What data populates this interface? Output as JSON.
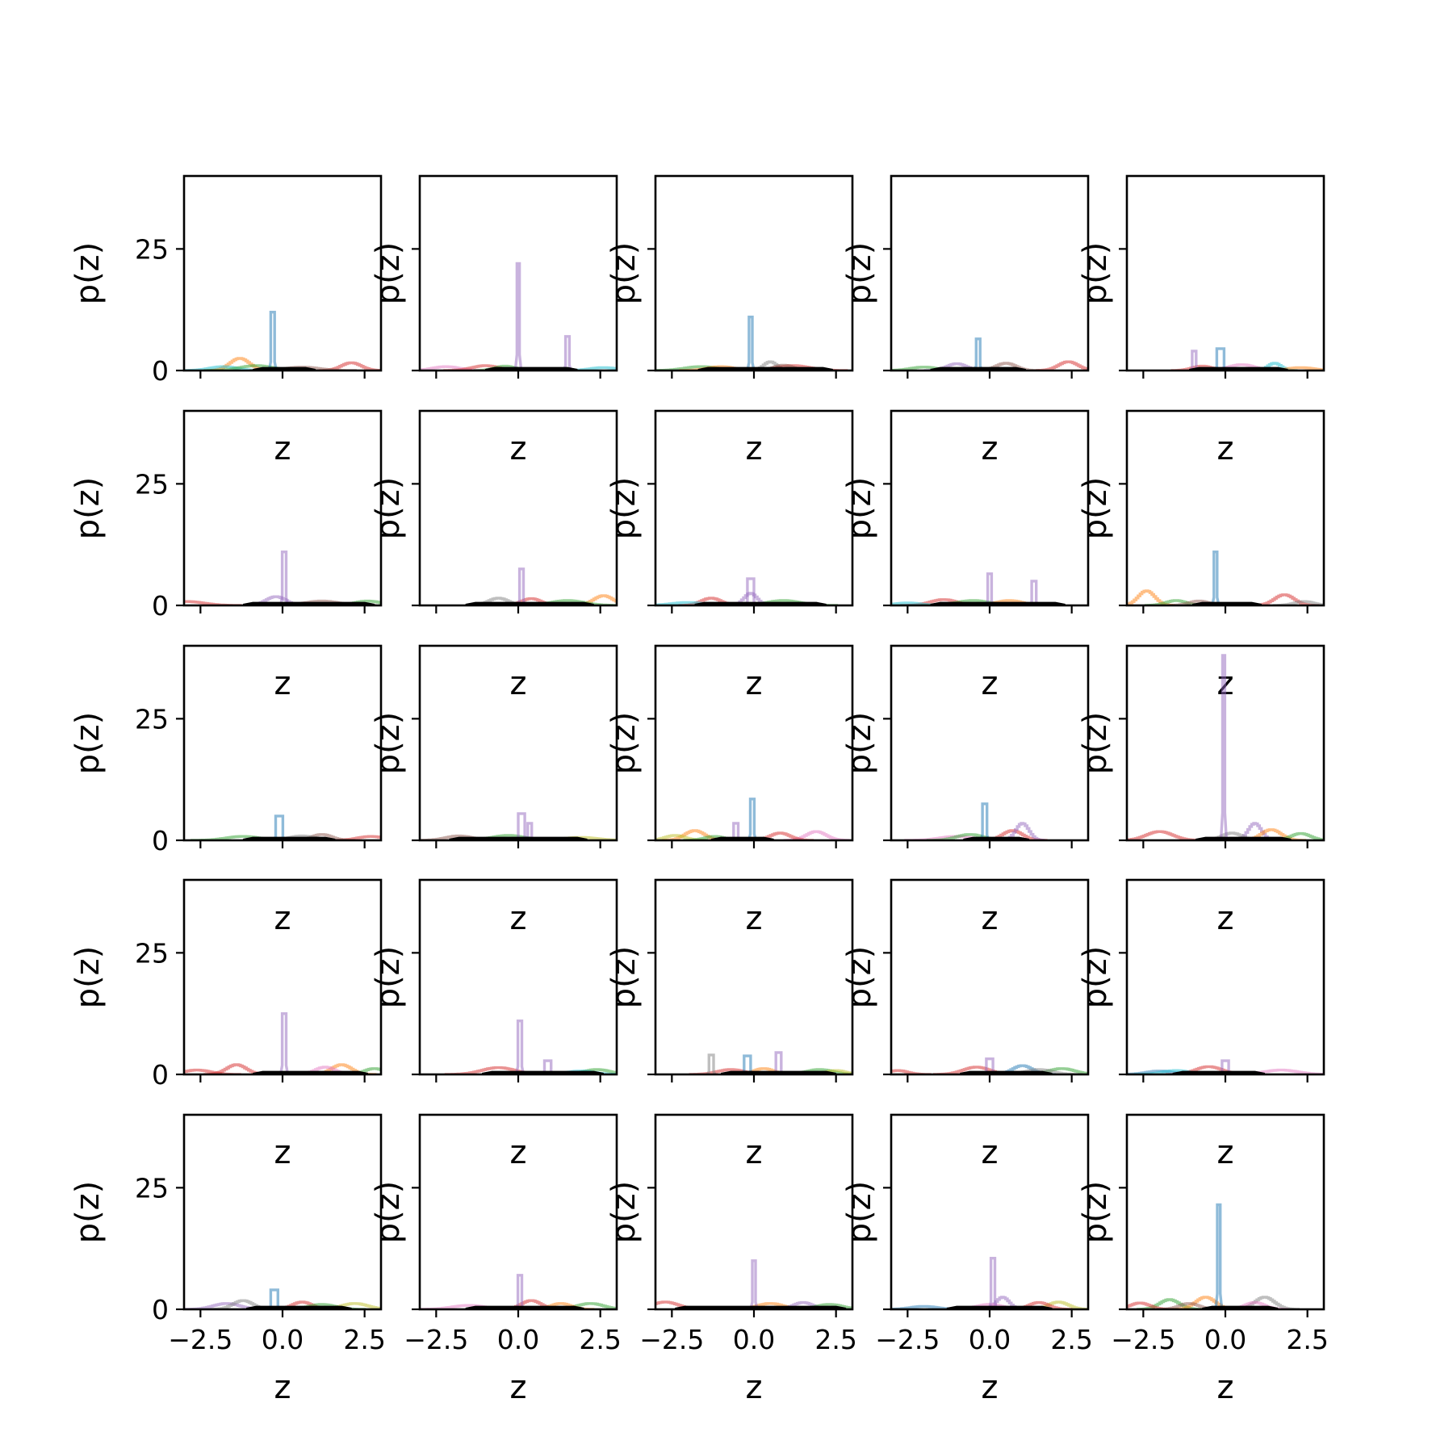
{
  "colors": [
    "#1f77b4",
    "#ff7f0e",
    "#2ca02c",
    "#d62728",
    "#9467bd",
    "#8c564b",
    "#e377c2",
    "#7f7f7f",
    "#bcbd22",
    "#17becf"
  ],
  "chart_data": {
    "type": "histogram-grid",
    "rows": 5,
    "cols": 5,
    "xlim": [
      -3,
      3
    ],
    "ylim": [
      0,
      40
    ],
    "xticks": [
      -2.5,
      0.0,
      2.5
    ],
    "xtick_labels": [
      "−2.5",
      "0.0",
      "2.5"
    ],
    "yticks": [
      0,
      25
    ],
    "ytick_labels": [
      "0",
      "25"
    ],
    "xlabel": "z",
    "ylabel": "p(z)",
    "panels": [
      {
        "spikes": [
          {
            "c": 0,
            "x": -0.3,
            "h": 12,
            "w": 0.12
          }
        ],
        "bumps": [
          {
            "c": 1,
            "x": -1.3,
            "h": 2.5,
            "w": 0.3
          },
          {
            "c": 3,
            "x": 2.1,
            "h": 1.6,
            "w": 0.3
          },
          {
            "c": 9,
            "x": -1.8,
            "h": 0.8,
            "w": 0.4
          },
          {
            "c": 2,
            "x": -0.8,
            "h": 1.0,
            "w": 0.5
          },
          {
            "c": 5,
            "x": 0.6,
            "h": 0.7,
            "w": 0.5
          }
        ],
        "mean": [
          -0.9,
          1.0
        ]
      },
      {
        "spikes": [
          {
            "c": 4,
            "x": 0.0,
            "h": 22,
            "w": 0.08
          },
          {
            "c": 4,
            "x": 1.5,
            "h": 7,
            "w": 0.12
          }
        ],
        "bumps": [
          {
            "c": 6,
            "x": -2.2,
            "h": 0.8,
            "w": 0.4
          },
          {
            "c": 3,
            "x": -1.0,
            "h": 1.0,
            "w": 0.4
          },
          {
            "c": 2,
            "x": -0.4,
            "h": 0.9,
            "w": 0.3
          },
          {
            "c": 9,
            "x": 2.6,
            "h": 0.6,
            "w": 0.4
          }
        ],
        "mean": [
          -1.0,
          1.8
        ]
      },
      {
        "spikes": [
          {
            "c": 0,
            "x": -0.1,
            "h": 11,
            "w": 0.1
          }
        ],
        "bumps": [
          {
            "c": 2,
            "x": -1.6,
            "h": 0.8,
            "w": 0.5
          },
          {
            "c": 1,
            "x": -1.0,
            "h": 0.8,
            "w": 0.4
          },
          {
            "c": 7,
            "x": 0.5,
            "h": 1.8,
            "w": 0.2
          },
          {
            "c": 3,
            "x": 1.2,
            "h": 1.0,
            "w": 0.5
          },
          {
            "c": 5,
            "x": 0.9,
            "h": 1.1,
            "w": 0.3
          }
        ],
        "mean": [
          -1.7,
          2.4
        ]
      },
      {
        "spikes": [
          {
            "c": 0,
            "x": -0.35,
            "h": 6.5,
            "w": 0.12
          }
        ],
        "bumps": [
          {
            "c": 2,
            "x": -2.0,
            "h": 0.7,
            "w": 0.4
          },
          {
            "c": 4,
            "x": -1.0,
            "h": 1.4,
            "w": 0.3
          },
          {
            "c": 3,
            "x": 2.4,
            "h": 1.8,
            "w": 0.3
          },
          {
            "c": 5,
            "x": 0.5,
            "h": 1.5,
            "w": 0.3
          }
        ],
        "mean": [
          -1.8,
          1.1
        ]
      },
      {
        "spikes": [
          {
            "c": 0,
            "x": -0.15,
            "h": 4.5,
            "w": 0.22
          },
          {
            "c": 4,
            "x": -0.95,
            "h": 4,
            "w": 0.12
          }
        ],
        "bumps": [
          {
            "c": 3,
            "x": -0.7,
            "h": 0.9,
            "w": 0.3
          },
          {
            "c": 9,
            "x": 1.5,
            "h": 1.5,
            "w": 0.2
          },
          {
            "c": 6,
            "x": 0.5,
            "h": 1.2,
            "w": 0.4
          },
          {
            "c": 1,
            "x": 2.3,
            "h": 0.6,
            "w": 0.4
          }
        ],
        "mean": [
          -1.1,
          1.9
        ]
      },
      {
        "spikes": [
          {
            "c": 4,
            "x": 0.05,
            "h": 11,
            "w": 0.12
          }
        ],
        "bumps": [
          {
            "c": 3,
            "x": -2.9,
            "h": 0.8,
            "w": 0.5
          },
          {
            "c": 4,
            "x": -0.2,
            "h": 1.8,
            "w": 0.3
          },
          {
            "c": 2,
            "x": 2.6,
            "h": 0.9,
            "w": 0.4
          },
          {
            "c": 5,
            "x": 1.2,
            "h": 0.9,
            "w": 0.5
          }
        ],
        "mean": [
          -1.2,
          2.8
        ]
      },
      {
        "spikes": [
          {
            "c": 4,
            "x": 0.1,
            "h": 7.5,
            "w": 0.12
          }
        ],
        "bumps": [
          {
            "c": 3,
            "x": 0.4,
            "h": 1.4,
            "w": 0.3
          },
          {
            "c": 1,
            "x": 2.6,
            "h": 2.0,
            "w": 0.3
          },
          {
            "c": 7,
            "x": -0.6,
            "h": 1.5,
            "w": 0.3
          },
          {
            "c": 2,
            "x": 1.5,
            "h": 1.0,
            "w": 0.5
          }
        ],
        "mean": [
          -1.6,
          2.3
        ]
      },
      {
        "spikes": [
          {
            "c": 4,
            "x": -0.1,
            "h": 5.5,
            "w": 0.2
          }
        ],
        "bumps": [
          {
            "c": 3,
            "x": -1.3,
            "h": 1.5,
            "w": 0.3
          },
          {
            "c": 9,
            "x": -2.0,
            "h": 0.6,
            "w": 0.5
          },
          {
            "c": 2,
            "x": 0.9,
            "h": 1.0,
            "w": 0.5
          },
          {
            "c": 4,
            "x": -0.1,
            "h": 2.5,
            "w": 0.2
          }
        ],
        "mean": [
          -1.8,
          2.2
        ]
      },
      {
        "spikes": [
          {
            "c": 4,
            "x": 0.0,
            "h": 6.5,
            "w": 0.12
          },
          {
            "c": 4,
            "x": 1.35,
            "h": 5,
            "w": 0.14
          }
        ],
        "bumps": [
          {
            "c": 3,
            "x": -1.4,
            "h": 1.2,
            "w": 0.4
          },
          {
            "c": 2,
            "x": -0.5,
            "h": 1.0,
            "w": 0.5
          },
          {
            "c": 1,
            "x": 0.6,
            "h": 1.0,
            "w": 0.4
          },
          {
            "c": 9,
            "x": -2.5,
            "h": 0.5,
            "w": 0.4
          }
        ],
        "mean": [
          -1.8,
          2.3
        ]
      },
      {
        "spikes": [
          {
            "c": 0,
            "x": -0.3,
            "h": 11,
            "w": 0.1
          }
        ],
        "bumps": [
          {
            "c": 1,
            "x": -2.4,
            "h": 3.0,
            "w": 0.25
          },
          {
            "c": 3,
            "x": 1.8,
            "h": 2.2,
            "w": 0.3
          },
          {
            "c": 2,
            "x": -1.5,
            "h": 1.0,
            "w": 0.3
          },
          {
            "c": 5,
            "x": -0.8,
            "h": 0.9,
            "w": 0.3
          },
          {
            "c": 7,
            "x": 2.4,
            "h": 0.8,
            "w": 0.3
          }
        ],
        "mean": [
          -1.0,
          1.1
        ]
      },
      {
        "spikes": [
          {
            "c": 0,
            "x": -0.1,
            "h": 5,
            "w": 0.22
          }
        ],
        "bumps": [
          {
            "c": 2,
            "x": -1.2,
            "h": 0.8,
            "w": 0.5
          },
          {
            "c": 5,
            "x": 1.2,
            "h": 1.2,
            "w": 0.3
          },
          {
            "c": 3,
            "x": 2.7,
            "h": 0.8,
            "w": 0.4
          },
          {
            "c": 7,
            "x": 0.6,
            "h": 0.9,
            "w": 0.4
          }
        ],
        "mean": [
          -1.2,
          1.6
        ]
      },
      {
        "spikes": [
          {
            "c": 4,
            "x": 0.1,
            "h": 5.5,
            "w": 0.2
          },
          {
            "c": 4,
            "x": 0.35,
            "h": 3.5,
            "w": 0.12
          }
        ],
        "bumps": [
          {
            "c": 5,
            "x": -1.8,
            "h": 0.9,
            "w": 0.4
          },
          {
            "c": 8,
            "x": 1.9,
            "h": 0.6,
            "w": 0.5
          },
          {
            "c": 2,
            "x": -0.3,
            "h": 1.0,
            "w": 0.5
          }
        ],
        "mean": [
          -2.1,
          2.1
        ]
      },
      {
        "spikes": [
          {
            "c": 0,
            "x": -0.05,
            "h": 8.5,
            "w": 0.12
          },
          {
            "c": 4,
            "x": -0.55,
            "h": 3.5,
            "w": 0.14
          }
        ],
        "bumps": [
          {
            "c": 1,
            "x": -1.8,
            "h": 2.0,
            "w": 0.3
          },
          {
            "c": 8,
            "x": -2.4,
            "h": 1.0,
            "w": 0.3
          },
          {
            "c": 6,
            "x": 1.9,
            "h": 1.8,
            "w": 0.3
          },
          {
            "c": 3,
            "x": 0.8,
            "h": 1.5,
            "w": 0.3
          },
          {
            "c": 2,
            "x": -1.2,
            "h": 0.8,
            "w": 0.3
          }
        ],
        "mean": [
          -1.3,
          0.6
        ]
      },
      {
        "spikes": [
          {
            "c": 0,
            "x": -0.15,
            "h": 7.5,
            "w": 0.14
          }
        ],
        "bumps": [
          {
            "c": 3,
            "x": 0.7,
            "h": 2.0,
            "w": 0.3
          },
          {
            "c": 4,
            "x": 1.0,
            "h": 3.5,
            "w": 0.2
          },
          {
            "c": 6,
            "x": -1.0,
            "h": 0.8,
            "w": 0.5
          },
          {
            "c": 2,
            "x": -0.6,
            "h": 1.2,
            "w": 0.4
          }
        ],
        "mean": [
          -0.8,
          1.2
        ]
      },
      {
        "spikes": [
          {
            "c": 4,
            "x": -0.05,
            "h": 38,
            "w": 0.07
          }
        ],
        "bumps": [
          {
            "c": 3,
            "x": -2.0,
            "h": 1.8,
            "w": 0.4
          },
          {
            "c": 4,
            "x": 0.9,
            "h": 3.5,
            "w": 0.2
          },
          {
            "c": 1,
            "x": 1.4,
            "h": 2.2,
            "w": 0.3
          },
          {
            "c": 2,
            "x": 2.3,
            "h": 1.4,
            "w": 0.3
          },
          {
            "c": 7,
            "x": 0.2,
            "h": 1.5,
            "w": 0.3
          }
        ],
        "mean": [
          -0.9,
          2.0
        ]
      },
      {
        "spikes": [
          {
            "c": 4,
            "x": 0.05,
            "h": 12.5,
            "w": 0.12
          }
        ],
        "bumps": [
          {
            "c": 3,
            "x": -2.6,
            "h": 0.9,
            "w": 0.4
          },
          {
            "c": 3,
            "x": -1.4,
            "h": 2.0,
            "w": 0.3
          },
          {
            "c": 1,
            "x": 1.8,
            "h": 2.0,
            "w": 0.3
          },
          {
            "c": 2,
            "x": 2.8,
            "h": 1.2,
            "w": 0.3
          },
          {
            "c": 6,
            "x": 1.3,
            "h": 1.5,
            "w": 0.3
          }
        ],
        "mean": [
          -0.9,
          2.6
        ]
      },
      {
        "spikes": [
          {
            "c": 4,
            "x": 0.05,
            "h": 11,
            "w": 0.12
          },
          {
            "c": 4,
            "x": 0.9,
            "h": 2.8,
            "w": 0.2
          }
        ],
        "bumps": [
          {
            "c": 3,
            "x": -0.6,
            "h": 1.4,
            "w": 0.5
          },
          {
            "c": 2,
            "x": 2.4,
            "h": 1.0,
            "w": 0.4
          },
          {
            "c": 9,
            "x": 1.9,
            "h": 0.7,
            "w": 0.4
          }
        ],
        "mean": [
          -1.1,
          2.6
        ]
      },
      {
        "spikes": [
          {
            "c": 0,
            "x": -0.2,
            "h": 3.8,
            "w": 0.2
          },
          {
            "c": 7,
            "x": -1.3,
            "h": 4,
            "w": 0.14
          },
          {
            "c": 4,
            "x": 0.75,
            "h": 4.5,
            "w": 0.16
          }
        ],
        "bumps": [
          {
            "c": 3,
            "x": -0.7,
            "h": 1.0,
            "w": 0.4
          },
          {
            "c": 1,
            "x": 0.3,
            "h": 1.2,
            "w": 0.3
          },
          {
            "c": 2,
            "x": 2.0,
            "h": 1.0,
            "w": 0.4
          },
          {
            "c": 8,
            "x": 2.5,
            "h": 0.8,
            "w": 0.3
          }
        ],
        "mean": [
          -1.0,
          2.5
        ]
      },
      {
        "spikes": [
          {
            "c": 4,
            "x": 0.0,
            "h": 3.2,
            "w": 0.2
          }
        ],
        "bumps": [
          {
            "c": 3,
            "x": -0.4,
            "h": 1.5,
            "w": 0.4
          },
          {
            "c": 0,
            "x": 1.0,
            "h": 1.8,
            "w": 0.3
          },
          {
            "c": 2,
            "x": 2.2,
            "h": 1.2,
            "w": 0.4
          },
          {
            "c": 3,
            "x": -2.8,
            "h": 0.8,
            "w": 0.3
          },
          {
            "c": 7,
            "x": 1.5,
            "h": 1.0,
            "w": 0.4
          }
        ],
        "mean": [
          -0.9,
          1.9
        ]
      },
      {
        "spikes": [
          {
            "c": 4,
            "x": 0.0,
            "h": 2.8,
            "w": 0.2
          }
        ],
        "bumps": [
          {
            "c": 3,
            "x": -0.5,
            "h": 1.6,
            "w": 0.4
          },
          {
            "c": 0,
            "x": -2.0,
            "h": 0.7,
            "w": 0.4
          },
          {
            "c": 6,
            "x": 1.7,
            "h": 0.9,
            "w": 0.5
          },
          {
            "c": 9,
            "x": -1.5,
            "h": 0.8,
            "w": 0.4
          }
        ],
        "mean": [
          -1.6,
          1.2
        ]
      },
      {
        "spikes": [
          {
            "c": 0,
            "x": -0.25,
            "h": 4,
            "w": 0.22
          }
        ],
        "bumps": [
          {
            "c": 4,
            "x": -1.7,
            "h": 1.2,
            "w": 0.4
          },
          {
            "c": 7,
            "x": -1.2,
            "h": 1.8,
            "w": 0.3
          },
          {
            "c": 3,
            "x": 0.6,
            "h": 1.5,
            "w": 0.3
          },
          {
            "c": 8,
            "x": 2.2,
            "h": 1.2,
            "w": 0.4
          },
          {
            "c": 2,
            "x": 1.2,
            "h": 1.0,
            "w": 0.4
          }
        ],
        "mean": [
          -1.1,
          2.1
        ]
      },
      {
        "spikes": [
          {
            "c": 4,
            "x": 0.05,
            "h": 7,
            "w": 0.12
          }
        ],
        "bumps": [
          {
            "c": 3,
            "x": 0.4,
            "h": 1.8,
            "w": 0.3
          },
          {
            "c": 2,
            "x": 2.2,
            "h": 1.2,
            "w": 0.4
          },
          {
            "c": 6,
            "x": -1.5,
            "h": 0.8,
            "w": 0.5
          },
          {
            "c": 1,
            "x": 1.3,
            "h": 1.2,
            "w": 0.3
          }
        ],
        "mean": [
          -1.6,
          2.0
        ]
      },
      {
        "spikes": [
          {
            "c": 4,
            "x": 0.0,
            "h": 10,
            "w": 0.1
          }
        ],
        "bumps": [
          {
            "c": 3,
            "x": -2.7,
            "h": 1.5,
            "w": 0.4
          },
          {
            "c": 1,
            "x": 0.5,
            "h": 1.2,
            "w": 0.4
          },
          {
            "c": 4,
            "x": 1.5,
            "h": 1.4,
            "w": 0.3
          },
          {
            "c": 2,
            "x": 2.3,
            "h": 1.0,
            "w": 0.4
          }
        ],
        "mean": [
          -2.4,
          2.8
        ]
      },
      {
        "spikes": [
          {
            "c": 4,
            "x": 0.1,
            "h": 10.5,
            "w": 0.12
          }
        ],
        "bumps": [
          {
            "c": 4,
            "x": 0.4,
            "h": 2.5,
            "w": 0.2
          },
          {
            "c": 8,
            "x": 2.1,
            "h": 1.5,
            "w": 0.3
          },
          {
            "c": 3,
            "x": 1.5,
            "h": 1.4,
            "w": 0.3
          },
          {
            "c": 0,
            "x": -2.0,
            "h": 0.6,
            "w": 0.4
          },
          {
            "c": 6,
            "x": 0.0,
            "h": 1.0,
            "w": 0.4
          }
        ],
        "mean": [
          -1.3,
          1.9
        ]
      },
      {
        "spikes": [
          {
            "c": 0,
            "x": -0.2,
            "h": 21.5,
            "w": 0.09
          }
        ],
        "bumps": [
          {
            "c": 2,
            "x": -1.7,
            "h": 2.0,
            "w": 0.3
          },
          {
            "c": 1,
            "x": -0.6,
            "h": 2.5,
            "w": 0.3
          },
          {
            "c": 7,
            "x": 1.2,
            "h": 2.5,
            "w": 0.3
          },
          {
            "c": 3,
            "x": -2.6,
            "h": 1.3,
            "w": 0.3
          },
          {
            "c": 6,
            "x": 0.9,
            "h": 1.4,
            "w": 0.3
          },
          {
            "c": 5,
            "x": -1.1,
            "h": 1.2,
            "w": 0.3
          }
        ],
        "mean": [
          -0.7,
          1.6
        ]
      }
    ]
  }
}
